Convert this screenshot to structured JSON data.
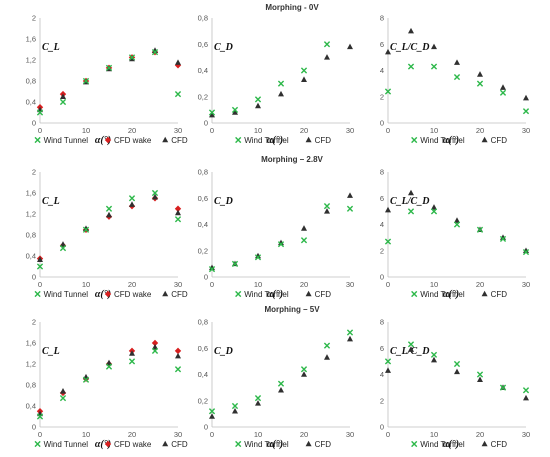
{
  "colors": {
    "wind_tunnel": "#2db84a",
    "cfd_wake": "#d81f1f",
    "cfd": "#303030",
    "axis": "#bfbfbf"
  },
  "rows": [
    {
      "title": "Morphing - 0V"
    },
    {
      "title": "Morphing – 2.8V"
    },
    {
      "title": "Morphing – 5V"
    }
  ],
  "chart_data": [
    {
      "type": "scatter",
      "xlabel": "α(°)",
      "ylabel": "C_L",
      "xticks": [
        "0",
        "10",
        "20",
        "30"
      ],
      "yticks": [
        "0",
        "0,4",
        "0,8",
        "1,2",
        "1,6",
        "2"
      ],
      "xlim": [
        0,
        30
      ],
      "ylim": [
        0,
        2
      ],
      "legend": "bottom",
      "series": [
        {
          "name": "Wind Tunnel",
          "marker": "x",
          "x": [
            0,
            5,
            10,
            15,
            20,
            25,
            30
          ],
          "y": [
            0.2,
            0.4,
            0.8,
            1.05,
            1.25,
            1.35,
            0.55
          ]
        },
        {
          "name": "CFD wake",
          "marker": "diamond",
          "x": [
            0,
            5,
            10,
            15,
            20,
            25,
            30
          ],
          "y": [
            0.3,
            0.55,
            0.8,
            1.05,
            1.25,
            1.35,
            1.1
          ]
        },
        {
          "name": "CFD",
          "marker": "triangle",
          "x": [
            0,
            5,
            10,
            15,
            20,
            25,
            30
          ],
          "y": [
            0.25,
            0.5,
            0.78,
            1.03,
            1.22,
            1.38,
            1.15
          ]
        }
      ]
    },
    {
      "type": "scatter",
      "xlabel": "α(°)",
      "ylabel": "C_D",
      "xticks": [
        "0",
        "10",
        "20",
        "30"
      ],
      "yticks": [
        "0",
        "0,2",
        "0,4",
        "0,6",
        "0,8"
      ],
      "xlim": [
        0,
        30
      ],
      "ylim": [
        0,
        0.8
      ],
      "legend": "bottom",
      "series": [
        {
          "name": "Wind Tunnel",
          "marker": "x",
          "x": [
            0,
            5,
            10,
            15,
            20,
            25
          ],
          "y": [
            0.08,
            0.1,
            0.18,
            0.3,
            0.4,
            0.6
          ]
        },
        {
          "name": "CFD",
          "marker": "triangle",
          "x": [
            0,
            5,
            10,
            15,
            20,
            25,
            30
          ],
          "y": [
            0.06,
            0.08,
            0.13,
            0.22,
            0.33,
            0.5,
            0.58
          ]
        }
      ]
    },
    {
      "type": "scatter",
      "xlabel": "α(°)",
      "ylabel": "C_L/C_D",
      "xticks": [
        "0",
        "10",
        "20",
        "30"
      ],
      "yticks": [
        "0",
        "2",
        "4",
        "6",
        "8"
      ],
      "xlim": [
        0,
        30
      ],
      "ylim": [
        0,
        8
      ],
      "legend": "bottom",
      "series": [
        {
          "name": "Wind Tunnel",
          "marker": "x",
          "x": [
            0,
            5,
            10,
            15,
            20,
            25,
            30
          ],
          "y": [
            2.4,
            4.3,
            4.3,
            3.5,
            3.0,
            2.3,
            0.9
          ]
        },
        {
          "name": "CFD",
          "marker": "triangle",
          "x": [
            0,
            5,
            10,
            15,
            20,
            25,
            30
          ],
          "y": [
            5.4,
            7.0,
            5.8,
            4.6,
            3.7,
            2.7,
            1.9
          ]
        }
      ]
    },
    {
      "type": "scatter",
      "xlabel": "α(°)",
      "ylabel": "C_L",
      "xticks": [
        "0",
        "10",
        "20",
        "30"
      ],
      "yticks": [
        "0",
        "0,4",
        "0,8",
        "1,2",
        "1,6",
        "2"
      ],
      "xlim": [
        0,
        30
      ],
      "ylim": [
        0,
        2
      ],
      "legend": "bottom",
      "series": [
        {
          "name": "Wind Tunnel",
          "marker": "x",
          "x": [
            0,
            5,
            10,
            15,
            20,
            25,
            30
          ],
          "y": [
            0.2,
            0.55,
            0.9,
            1.3,
            1.5,
            1.6,
            1.1
          ]
        },
        {
          "name": "CFD wake",
          "marker": "diamond",
          "x": [
            0,
            5,
            10,
            15,
            20,
            25,
            30
          ],
          "y": [
            0.35,
            0.6,
            0.9,
            1.15,
            1.35,
            1.5,
            1.3
          ]
        },
        {
          "name": "CFD",
          "marker": "triangle",
          "x": [
            0,
            5,
            10,
            15,
            20,
            25,
            30
          ],
          "y": [
            0.33,
            0.62,
            0.92,
            1.18,
            1.38,
            1.52,
            1.22
          ]
        }
      ]
    },
    {
      "type": "scatter",
      "xlabel": "α(°)",
      "ylabel": "C_D",
      "xticks": [
        "0",
        "10",
        "20",
        "30"
      ],
      "yticks": [
        "0",
        "0,2",
        "0,4",
        "0,6",
        "0,8"
      ],
      "xlim": [
        0,
        30
      ],
      "ylim": [
        0,
        0.8
      ],
      "legend": "bottom",
      "series": [
        {
          "name": "Wind Tunnel",
          "marker": "x",
          "x": [
            0,
            5,
            10,
            15,
            20,
            25,
            30
          ],
          "y": [
            0.06,
            0.1,
            0.15,
            0.25,
            0.28,
            0.54,
            0.52
          ]
        },
        {
          "name": "CFD",
          "marker": "triangle",
          "x": [
            0,
            5,
            10,
            15,
            20,
            25,
            30
          ],
          "y": [
            0.07,
            0.1,
            0.16,
            0.26,
            0.37,
            0.5,
            0.62
          ]
        }
      ]
    },
    {
      "type": "scatter",
      "xlabel": "α(°)",
      "ylabel": "C_L/C_D",
      "xticks": [
        "0",
        "10",
        "20",
        "30"
      ],
      "yticks": [
        "0",
        "2",
        "4",
        "6",
        "8"
      ],
      "xlim": [
        0,
        30
      ],
      "ylim": [
        0,
        8
      ],
      "legend": "bottom",
      "series": [
        {
          "name": "Wind Tunnel",
          "marker": "x",
          "x": [
            0,
            5,
            10,
            15,
            20,
            25,
            30
          ],
          "y": [
            2.7,
            5.0,
            5.0,
            4.0,
            3.6,
            2.9,
            1.9
          ]
        },
        {
          "name": "CFD",
          "marker": "triangle",
          "x": [
            0,
            5,
            10,
            15,
            20,
            25,
            30
          ],
          "y": [
            5.1,
            6.4,
            5.3,
            4.3,
            3.6,
            3.0,
            2.0
          ]
        }
      ]
    },
    {
      "type": "scatter",
      "xlabel": "α(°)",
      "ylabel": "C_L",
      "xticks": [
        "0",
        "10",
        "20",
        "30"
      ],
      "yticks": [
        "0",
        "0,4",
        "0,8",
        "1,2",
        "1,6",
        "2"
      ],
      "xlim": [
        0,
        30
      ],
      "ylim": [
        0,
        2
      ],
      "legend": "bottom",
      "series": [
        {
          "name": "Wind Tunnel",
          "marker": "x",
          "x": [
            0,
            5,
            10,
            15,
            20,
            25,
            30
          ],
          "y": [
            0.2,
            0.55,
            0.9,
            1.15,
            1.25,
            1.45,
            1.1
          ]
        },
        {
          "name": "CFD wake",
          "marker": "diamond",
          "x": [
            0,
            5,
            10,
            15,
            20,
            25,
            30
          ],
          "y": [
            0.3,
            0.65,
            0.92,
            1.2,
            1.45,
            1.6,
            1.45
          ]
        },
        {
          "name": "CFD",
          "marker": "triangle",
          "x": [
            0,
            5,
            10,
            15,
            20,
            25,
            30
          ],
          "y": [
            0.25,
            0.68,
            0.95,
            1.22,
            1.4,
            1.52,
            1.35
          ]
        }
      ]
    },
    {
      "type": "scatter",
      "xlabel": "α(°)",
      "ylabel": "C_D",
      "xticks": [
        "0",
        "10",
        "20",
        "30"
      ],
      "yticks": [
        "0",
        "0,2",
        "0,4",
        "0,6",
        "0,8"
      ],
      "xlim": [
        0,
        30
      ],
      "ylim": [
        0,
        0.8
      ],
      "legend": "bottom",
      "series": [
        {
          "name": "Wind Tunnel",
          "marker": "x",
          "x": [
            0,
            5,
            10,
            15,
            20,
            25,
            30
          ],
          "y": [
            0.12,
            0.16,
            0.22,
            0.33,
            0.44,
            0.62,
            0.72
          ]
        },
        {
          "name": "CFD",
          "marker": "triangle",
          "x": [
            0,
            5,
            10,
            15,
            20,
            25,
            30
          ],
          "y": [
            0.08,
            0.12,
            0.18,
            0.28,
            0.4,
            0.53,
            0.67
          ]
        }
      ]
    },
    {
      "type": "scatter",
      "xlabel": "α(°)",
      "ylabel": "C_L/C_D",
      "xticks": [
        "0",
        "10",
        "20",
        "30"
      ],
      "yticks": [
        "0",
        "2",
        "4",
        "6",
        "8"
      ],
      "xlim": [
        0,
        30
      ],
      "ylim": [
        0,
        8
      ],
      "legend": "bottom",
      "series": [
        {
          "name": "Wind Tunnel",
          "marker": "x",
          "x": [
            0,
            5,
            10,
            15,
            20,
            25,
            30
          ],
          "y": [
            5.0,
            6.3,
            5.5,
            4.8,
            4.0,
            3.0,
            2.8
          ]
        },
        {
          "name": "CFD",
          "marker": "triangle",
          "x": [
            0,
            5,
            10,
            15,
            20,
            25,
            30
          ],
          "y": [
            4.3,
            5.9,
            5.1,
            4.2,
            3.6,
            3.0,
            2.2
          ]
        }
      ]
    }
  ]
}
